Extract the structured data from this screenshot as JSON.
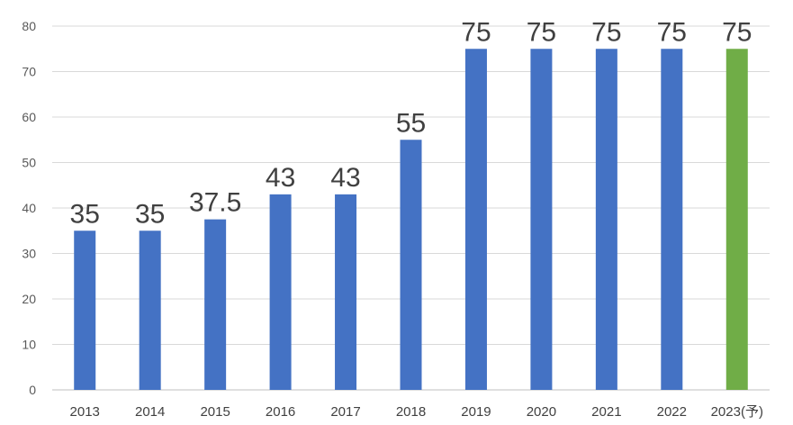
{
  "chart_data": {
    "type": "bar",
    "categories": [
      "2013",
      "2014",
      "2015",
      "2016",
      "2017",
      "2018",
      "2019",
      "2020",
      "2021",
      "2022",
      "2023(予)"
    ],
    "values": [
      35,
      35,
      37.5,
      43,
      43,
      55,
      75,
      75,
      75,
      75,
      75
    ],
    "data_labels": [
      "35",
      "35",
      "37.5",
      "43",
      "43",
      "55",
      "75",
      "75",
      "75",
      "75",
      "75"
    ],
    "title": "",
    "xlabel": "",
    "ylabel": "",
    "ylim": [
      0,
      80
    ],
    "yticks": [
      "0",
      "10",
      "20",
      "30",
      "40",
      "50",
      "60",
      "70",
      "80"
    ],
    "grid": true,
    "legend": "none",
    "colors": {
      "default_bar": "#4472c4",
      "highlight_bar": "#70ad47",
      "highlight_category": "2023(予)"
    }
  }
}
